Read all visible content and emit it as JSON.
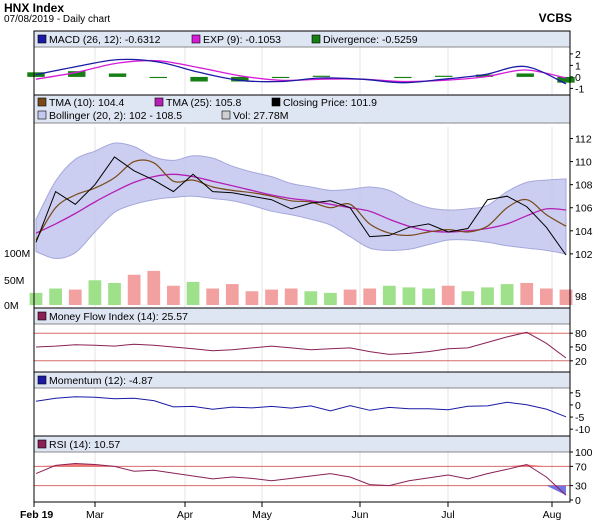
{
  "header": {
    "title": "HNX Index",
    "subtitle": "07/08/2019 - Daily chart",
    "broker": "VCBS"
  },
  "colors": {
    "panel_bg": "#ffffff",
    "legend_bg": "#dfe6f3",
    "grid": "#e4e4e4",
    "macd": "#1a1aa6",
    "macd_exp": "#d81bd8",
    "divergence": "#157f15",
    "tma10": "#7a4a1a",
    "tma25": "#b51fb5",
    "close": "#000000",
    "band_fill": "#c6c9ef",
    "band_edge": "#9c9fd8",
    "vol_up": "#9fe08a",
    "vol_down": "#f2a0a0",
    "mfi": "#8a2056",
    "momentum": "#1a1aa6",
    "rsi": "#8a2056",
    "overbought_fill": "#f06060",
    "oversold_fill": "#5a5ae0",
    "level_line": "#d76b6b"
  },
  "chart_data": [
    {
      "type": "line",
      "panel": "MACD",
      "x": [
        "01/02",
        "15/02",
        "01/03",
        "15/03",
        "01/04",
        "15/04",
        "01/05",
        "15/05",
        "01/06",
        "15/06",
        "01/07",
        "15/07",
        "01/08",
        "07/08"
      ],
      "series": [
        {
          "name": "MACD (26, 12)",
          "legend_value": "-0.6312",
          "values": [
            0.2,
            0.9,
            1.5,
            1.3,
            0.4,
            -0.3,
            -0.4,
            -0.1,
            -0.2,
            -0.5,
            -0.2,
            0.2,
            0.9,
            -0.6
          ]
        },
        {
          "name": "EXP (9)",
          "legend_value": "-0.1053",
          "values": [
            -0.2,
            0.4,
            1.2,
            1.4,
            0.8,
            0.1,
            -0.3,
            -0.2,
            -0.2,
            -0.4,
            -0.3,
            0.0,
            0.6,
            -0.1
          ]
        },
        {
          "name": "Divergence",
          "legend_value": "-0.5259",
          "type": "bar",
          "values": [
            0.4,
            0.5,
            0.3,
            -0.1,
            -0.4,
            -0.4,
            -0.1,
            0.1,
            0.0,
            -0.1,
            0.1,
            0.2,
            0.3,
            -0.5
          ]
        }
      ],
      "y_ticks": [
        "2",
        "1",
        "0",
        "-1"
      ],
      "ylim": [
        -1.4,
        2.6
      ]
    },
    {
      "type": "line",
      "panel": "Price",
      "x": [
        "01/02",
        "08/02",
        "15/02",
        "22/02",
        "01/03",
        "08/03",
        "15/03",
        "22/03",
        "29/03",
        "05/04",
        "12/04",
        "19/04",
        "26/04",
        "03/05",
        "10/05",
        "17/05",
        "24/05",
        "31/05",
        "07/06",
        "14/06",
        "21/06",
        "28/06",
        "05/07",
        "12/07",
        "19/07",
        "26/07",
        "02/08",
        "07/08"
      ],
      "series": [
        {
          "name": "TMA (10)",
          "legend_value": "104.4",
          "values": [
            103.2,
            106.0,
            107.1,
            107.7,
            108.6,
            110.0,
            109.9,
            108.3,
            108.4,
            107.8,
            107.5,
            107.3,
            107.0,
            106.6,
            106.5,
            106.0,
            106.3,
            104.6,
            103.8,
            103.6,
            103.9,
            104.1,
            103.9,
            104.4,
            106.0,
            106.7,
            105.4,
            104.4
          ]
        },
        {
          "name": "TMA (25)",
          "legend_value": "105.8",
          "values": [
            103.8,
            104.6,
            105.5,
            106.5,
            107.4,
            108.2,
            108.7,
            108.9,
            108.7,
            108.3,
            107.9,
            107.5,
            107.1,
            106.8,
            106.6,
            106.3,
            106.0,
            105.7,
            105.0,
            104.4,
            104.0,
            103.9,
            104.0,
            104.2,
            104.6,
            105.3,
            105.9,
            105.8
          ]
        },
        {
          "name": "Closing Price",
          "legend_value": "101.9",
          "values": [
            103.0,
            107.4,
            106.3,
            108.0,
            110.4,
            109.2,
            108.4,
            107.4,
            108.9,
            107.4,
            107.3,
            107.0,
            106.7,
            105.9,
            106.4,
            106.6,
            106.0,
            103.5,
            103.6,
            104.3,
            104.6,
            103.9,
            104.2,
            106.7,
            107.0,
            106.1,
            104.3,
            101.9
          ]
        }
      ],
      "bands": {
        "name": "Bollinger (20, 2)",
        "legend_value": "102 - 108.5",
        "upper": [
          105.0,
          108.3,
          110.2,
          110.9,
          111.6,
          111.3,
          110.4,
          110.1,
          110.5,
          110.3,
          109.6,
          109.1,
          108.7,
          108.1,
          107.8,
          107.5,
          107.6,
          107.8,
          107.5,
          106.6,
          106.0,
          105.8,
          105.9,
          106.2,
          107.4,
          108.2,
          108.4,
          108.5
        ],
        "lower": [
          102.2,
          101.6,
          102.1,
          103.9,
          105.6,
          106.3,
          106.7,
          106.9,
          107.0,
          106.8,
          106.6,
          106.2,
          105.7,
          105.4,
          105.0,
          104.5,
          103.5,
          102.5,
          102.3,
          102.4,
          102.8,
          103.2,
          103.2,
          103.0,
          102.7,
          102.5,
          102.3,
          102.0
        ]
      },
      "y_ticks": [
        "112",
        "110",
        "108",
        "106",
        "104",
        "102"
      ],
      "ylim": [
        98,
        113
      ]
    },
    {
      "type": "bar",
      "panel": "Volume",
      "series": [
        {
          "name": "Vol",
          "legend_value": "27.78M",
          "values": [
            22,
            30,
            28,
            45,
            40,
            55,
            62,
            35,
            42,
            30,
            38,
            25,
            28,
            30,
            25,
            22,
            28,
            30,
            35,
            32,
            30,
            35,
            25,
            32,
            38,
            40,
            30,
            28
          ]
        }
      ],
      "y_ticks": [
        "100M",
        "50M",
        "0M"
      ],
      "ylim": [
        0,
        100
      ]
    },
    {
      "type": "line",
      "panel": "Money Flow Index",
      "series": [
        {
          "name": "Money Flow Index (14)",
          "legend_value": "25.57",
          "values": [
            50,
            52,
            55,
            54,
            52,
            56,
            54,
            50,
            46,
            42,
            44,
            48,
            52,
            48,
            44,
            46,
            48,
            40,
            34,
            36,
            40,
            46,
            48,
            60,
            72,
            82,
            58,
            26
          ]
        }
      ],
      "levels": [
        80,
        20
      ],
      "y_ticks": [
        "80",
        "50",
        "20"
      ],
      "ylim": [
        0,
        100
      ]
    },
    {
      "type": "line",
      "panel": "Momentum",
      "series": [
        {
          "name": "Momentum (12)",
          "legend_value": "-4.87",
          "values": [
            1.5,
            2.8,
            3.4,
            3.2,
            2.6,
            2.8,
            1.8,
            -0.8,
            -0.6,
            -1.8,
            -0.9,
            -1.2,
            -0.6,
            -1.3,
            -0.4,
            -2.4,
            -0.3,
            -2.2,
            -1.0,
            -1.6,
            -1.6,
            -2.0,
            -0.5,
            -0.4,
            1.1,
            0.1,
            -1.7,
            -4.9
          ]
        }
      ],
      "y_ticks": [
        "5",
        "0",
        "-5",
        "-10"
      ],
      "ylim": [
        -12,
        7
      ]
    },
    {
      "type": "line",
      "panel": "RSI",
      "series": [
        {
          "name": "RSI (14)",
          "legend_value": "10.57",
          "values": [
            55,
            72,
            76,
            74,
            70,
            60,
            62,
            56,
            50,
            44,
            48,
            45,
            40,
            45,
            50,
            55,
            48,
            32,
            30,
            40,
            46,
            52,
            44,
            55,
            64,
            74,
            48,
            10
          ]
        }
      ],
      "levels": [
        70,
        30
      ],
      "y_ticks": [
        "100",
        "70",
        "30",
        "0"
      ],
      "ylim": [
        0,
        100
      ]
    }
  ],
  "x_axis": {
    "tick_labels": [
      "Feb 19",
      "Mar",
      "Apr",
      "May",
      "Jun",
      "Jul",
      "Aug"
    ]
  }
}
